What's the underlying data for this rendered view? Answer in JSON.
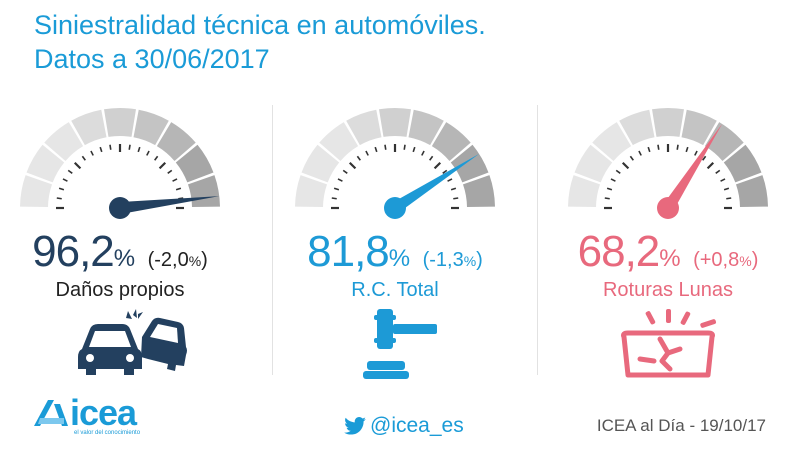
{
  "header": {
    "title_line1": "Siniestralidad técnica en automóviles.",
    "title_line2": "Datos a 30/06/2017"
  },
  "chart_data": {
    "type": "gauge",
    "title": "Siniestralidad técnica en automóviles. Datos a 30/06/2017",
    "unit": "%",
    "gauges": [
      {
        "name": "Daños propios",
        "value": 96.2,
        "value_text": "96,2",
        "change": -2.0,
        "change_text": "-2,0",
        "color": "#23405f",
        "icon": "car-crash-icon"
      },
      {
        "name": "R.C. Total",
        "value": 81.8,
        "value_text": "81,8",
        "change": -1.3,
        "change_text": "-1,3",
        "color": "#1d9ad6",
        "icon": "gavel-icon"
      },
      {
        "name": "Roturas Lunas",
        "value": 68.2,
        "value_text": "68,2",
        "change": 0.8,
        "change_text": "+0,8",
        "color": "#e8697d",
        "icon": "broken-windshield-icon"
      }
    ]
  },
  "footer": {
    "brand": "ICEA",
    "brand_display": "icea",
    "tagline": "el valor del conocimiento",
    "social_icon": "twitter-bird-icon",
    "social_handle": "@icea_es",
    "date_text": "ICEA al Día - 19/10/17"
  }
}
